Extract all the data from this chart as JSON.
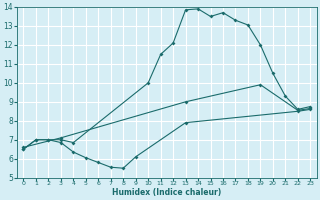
{
  "xlabel": "Humidex (Indice chaleur)",
  "bg_color": "#d6eef5",
  "grid_color": "#ffffff",
  "line_color": "#1a6b6b",
  "xlim": [
    -0.5,
    23.5
  ],
  "ylim": [
    5,
    14
  ],
  "xticks": [
    0,
    1,
    2,
    3,
    4,
    5,
    6,
    7,
    8,
    9,
    10,
    11,
    12,
    13,
    14,
    15,
    16,
    17,
    18,
    19,
    20,
    21,
    22,
    23
  ],
  "yticks": [
    5,
    6,
    7,
    8,
    9,
    10,
    11,
    12,
    13,
    14
  ],
  "line1_x": [
    0,
    1,
    2,
    3,
    4,
    10,
    11,
    12,
    13,
    14,
    15,
    16,
    17,
    18,
    19,
    20,
    21,
    22,
    23
  ],
  "line1_y": [
    6.5,
    7.0,
    7.0,
    7.0,
    6.85,
    10.0,
    11.5,
    12.1,
    13.85,
    13.9,
    13.5,
    13.7,
    13.3,
    13.05,
    12.0,
    10.5,
    9.3,
    8.6,
    8.75
  ],
  "line2_x": [
    0,
    3,
    13,
    19,
    22,
    23
  ],
  "line2_y": [
    6.6,
    7.1,
    9.0,
    9.9,
    8.55,
    8.65
  ],
  "line3_x": [
    0,
    1,
    2,
    3,
    4,
    5,
    6,
    7,
    8,
    9,
    13,
    22,
    23
  ],
  "line3_y": [
    6.5,
    7.0,
    7.0,
    6.85,
    6.35,
    6.05,
    5.8,
    5.55,
    5.5,
    6.1,
    7.9,
    8.5,
    8.6
  ]
}
